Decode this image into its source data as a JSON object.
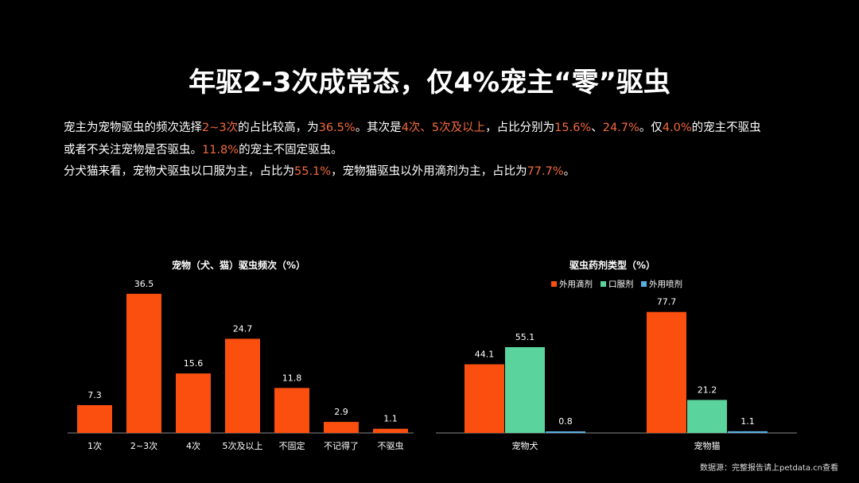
{
  "title": "年驱2-3次成常态，仅4%宠主“零”驱虫",
  "paragraph": [
    [
      [
        "宠主为宠物驱虫的频次选择",
        0
      ],
      [
        "2~3次",
        1
      ],
      [
        "的占比较高，为",
        0
      ],
      [
        "36.5%",
        1
      ],
      [
        "。其次是",
        0
      ],
      [
        "4次、5次及以上",
        1
      ],
      [
        "，占比分别为",
        0
      ],
      [
        "15.6%",
        1
      ],
      [
        "、",
        0
      ],
      [
        "24.7%",
        1
      ],
      [
        "。仅",
        0
      ],
      [
        "4.0%",
        1
      ],
      [
        "的宠主不驱虫",
        0
      ]
    ],
    [
      [
        "或者不关注宠物是否驱虫。",
        0
      ],
      [
        "11.8%",
        1
      ],
      [
        "的宠主不固定驱虫。",
        0
      ]
    ],
    [
      [
        "分犬猫来看，宠物犬驱虫以口服为主，占比为",
        0
      ],
      [
        "55.1%",
        1
      ],
      [
        "，宠物猫驱虫以外用滴剂为主，占比为",
        0
      ],
      [
        "77.7%",
        1
      ],
      [
        "。",
        0
      ]
    ]
  ],
  "source": "数据源：完整报告请上petdata.cn查看",
  "chart_data": [
    {
      "type": "bar",
      "title": "宠物（犬、猫）驱虫频次（%）",
      "categories": [
        "1次",
        "2~3次",
        "4次",
        "5次及以上",
        "不固定",
        "不记得了",
        "不驱虫"
      ],
      "values": [
        7.3,
        36.5,
        15.6,
        24.7,
        11.8,
        2.9,
        1.1
      ],
      "color": "#fa4f0f",
      "grid": false
    },
    {
      "type": "bar",
      "title": "驱虫药剂类型（%）",
      "categories": [
        "宠物犬",
        "宠物猫"
      ],
      "legend": "top",
      "grid": false,
      "series": [
        {
          "name": "外用滴剂",
          "values": [
            44.1,
            77.7
          ],
          "color": "#fa4f0f"
        },
        {
          "name": "口服剂",
          "values": [
            55.1,
            21.2
          ],
          "color": "#5ad39c"
        },
        {
          "name": "外用喷剂",
          "values": [
            0.8,
            1.1
          ],
          "color": "#5aaee0"
        }
      ]
    }
  ]
}
